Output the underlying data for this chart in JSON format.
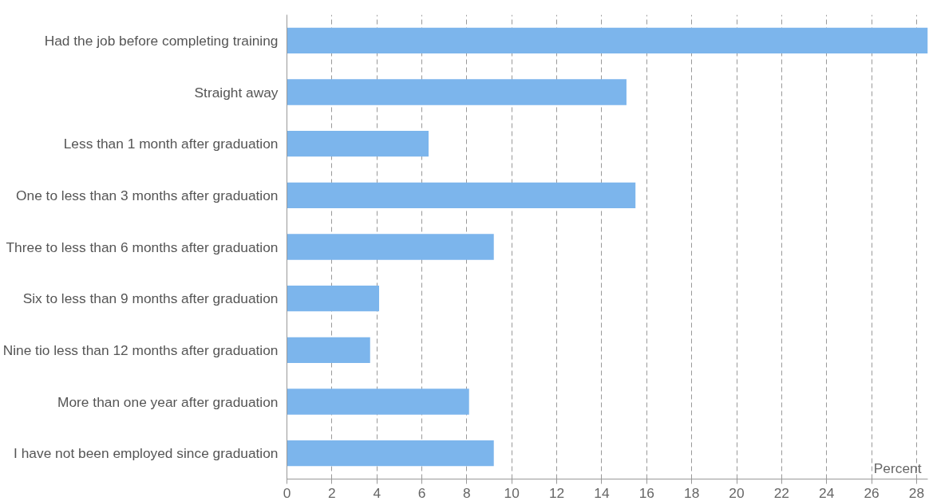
{
  "chart_data": {
    "type": "bar",
    "orientation": "horizontal",
    "xlabel": "Percent",
    "categories": [
      "Had the job before completing training",
      "Straight away",
      "Less than 1 month after graduation",
      "One to less than 3 months after graduation",
      "Three to less than 6 months after graduation",
      "Six to less than 9 months after graduation",
      "Nine tio less than 12 months after graduation",
      "More than one year after graduation",
      "I have not been employed since graduation"
    ],
    "values": [
      28.5,
      15.1,
      6.3,
      15.5,
      9.2,
      4.1,
      3.7,
      8.1,
      9.2
    ],
    "color": "#7cb5ec",
    "xlim": [
      0,
      28.5
    ],
    "xticks": [
      0,
      2,
      4,
      6,
      8,
      10,
      12,
      14,
      16,
      18,
      20,
      22,
      24,
      26,
      28
    ],
    "grid": "x"
  }
}
